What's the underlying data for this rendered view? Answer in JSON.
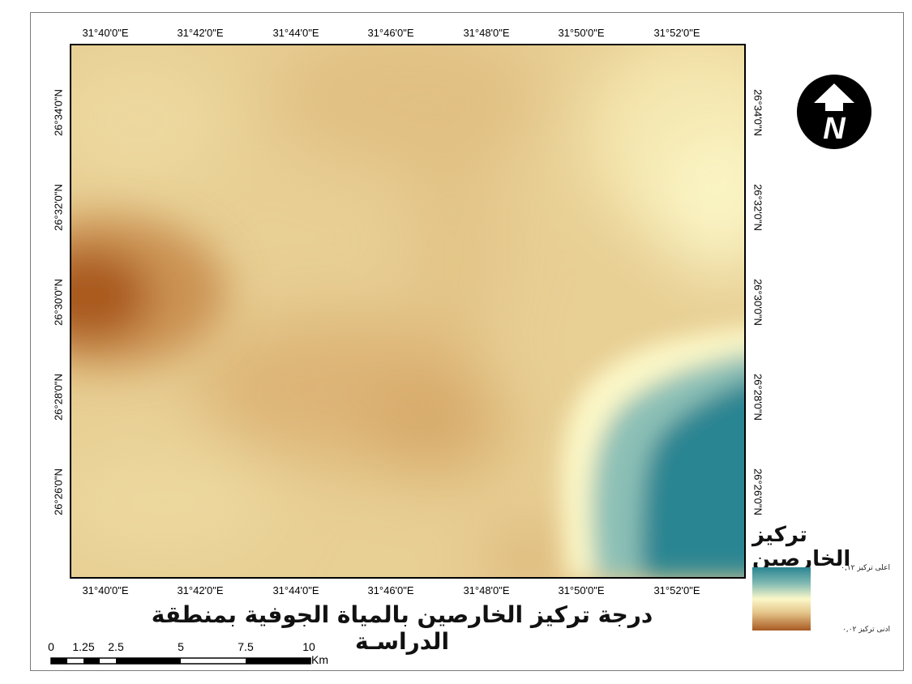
{
  "map": {
    "title": "درجة تركيز الخارصين بالمياة الجوفية بمنطقة الدراسـة",
    "longitude_ticks": [
      "31°40'0\"E",
      "31°42'0\"E",
      "31°44'0\"E",
      "31°46'0\"E",
      "31°48'0\"E",
      "31°50'0\"E",
      "31°52'0\"E"
    ],
    "latitude_ticks": [
      "26°34'0\"N",
      "26°32'0\"N",
      "26°30'0\"N",
      "26°28'0\"N",
      "26°26'0\"N"
    ],
    "colors": {
      "high": "#2a8592",
      "mid": "#fbf7c8",
      "low": "#a85a22",
      "base": "#e8cf94"
    }
  },
  "legend": {
    "title": "تركيز الخارصين",
    "high_label": "اعلى تركيز ٠,١٢",
    "low_label": "ادنى تركيز ٠,٠٢"
  },
  "north_arrow": {
    "letter": "N",
    "icon": "north-arrow-icon"
  },
  "scale_bar": {
    "labels": [
      "0",
      "1.25",
      "2.5",
      "5",
      "7.5",
      "10"
    ],
    "unit": "Km"
  }
}
